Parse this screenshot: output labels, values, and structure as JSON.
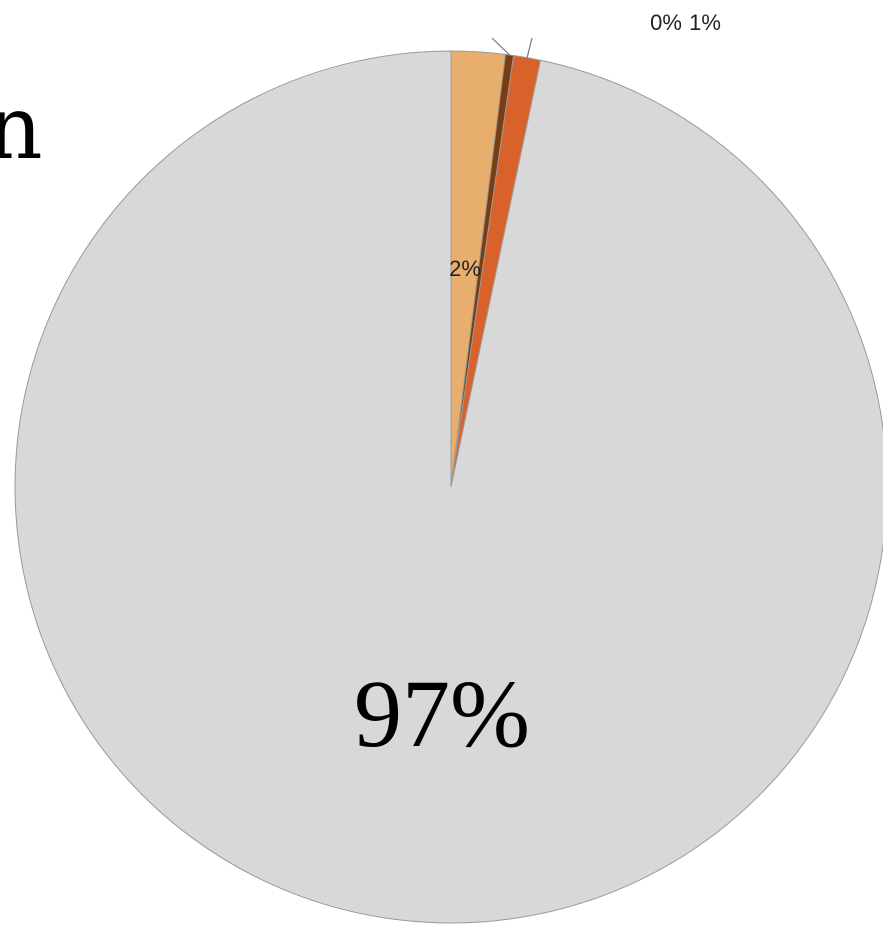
{
  "fragment_text": "n",
  "chart_data": {
    "type": "pie",
    "title": "",
    "slices": [
      {
        "value": 2,
        "label": "2%",
        "color": "#E8AE6E"
      },
      {
        "value": 0.3,
        "label": "0%",
        "color": "#7A3C10"
      },
      {
        "value": 1,
        "label": "1%",
        "color": "#D9622B"
      },
      {
        "value": 97,
        "label": "97%",
        "color": "#D8D8D8"
      }
    ],
    "legend": "none",
    "start_angle": "12 o'clock",
    "direction": "clockwise"
  }
}
